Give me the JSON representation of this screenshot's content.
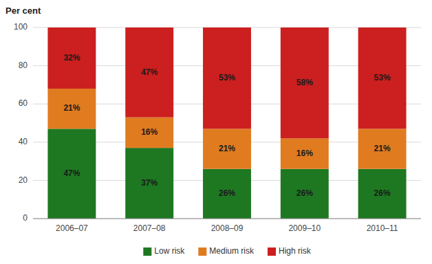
{
  "chart_data": {
    "type": "bar",
    "stacked": true,
    "ylabel": "Per cent",
    "categories": [
      "2006–07",
      "2007–08",
      "2008–09",
      "2009–10",
      "2010–11"
    ],
    "series": [
      {
        "name": "Low risk",
        "color": "#1e7822",
        "values": [
          47,
          37,
          26,
          26,
          26
        ],
        "value_labels": [
          "47%",
          "37%",
          "26%",
          "26%",
          "26%"
        ]
      },
      {
        "name": "Medium risk",
        "color": "#e07b20",
        "values": [
          21,
          16,
          21,
          16,
          21
        ],
        "value_labels": [
          "21%",
          "16%",
          "21%",
          "16%",
          "21%"
        ]
      },
      {
        "name": "High risk",
        "color": "#cc1f1f",
        "values": [
          32,
          47,
          53,
          58,
          53
        ],
        "value_labels": [
          "32%",
          "47%",
          "53%",
          "58%",
          "53%"
        ]
      }
    ],
    "ylim": [
      0,
      100
    ],
    "yticks": [
      0,
      20,
      40,
      60,
      80,
      100
    ],
    "grid": true,
    "legend": "bottom",
    "data_labels": true
  }
}
